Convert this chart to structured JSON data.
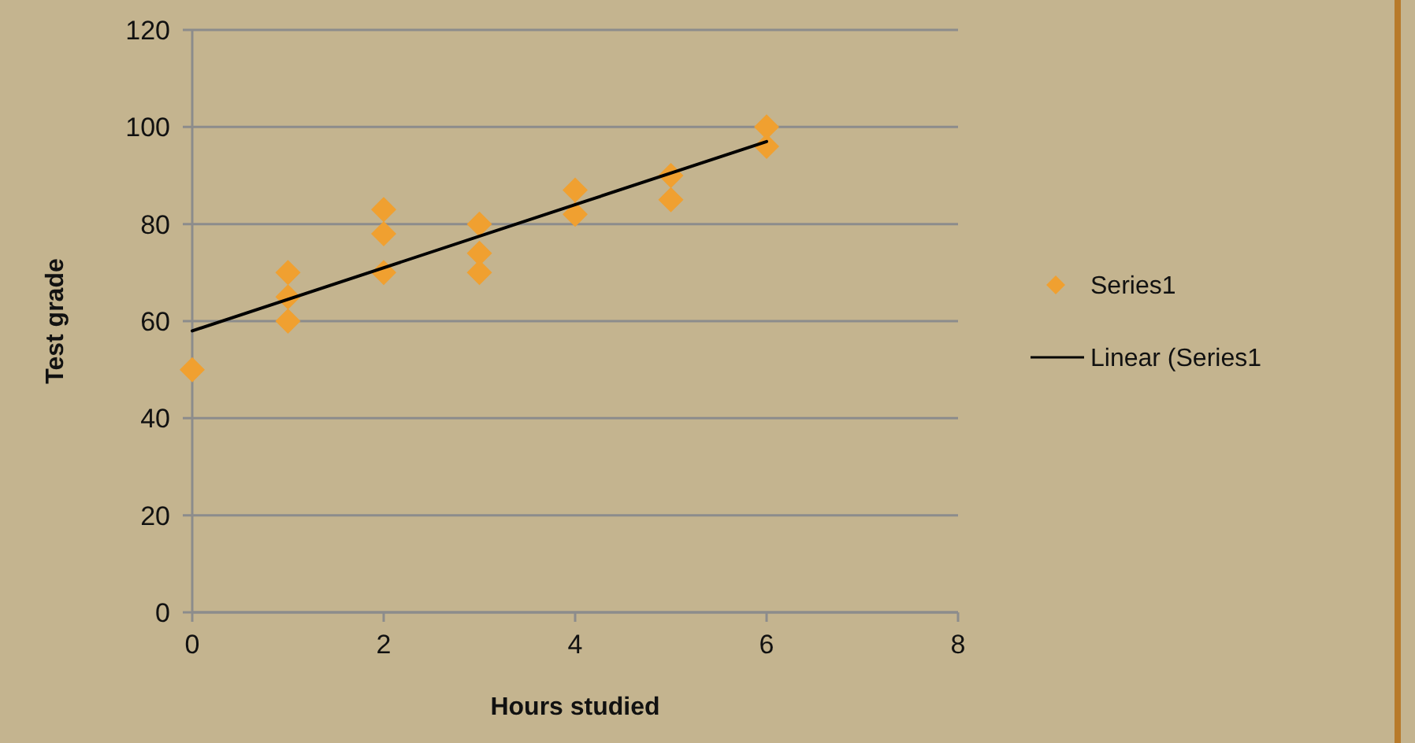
{
  "chart_data": {
    "type": "scatter",
    "xlabel": "Hours studied",
    "ylabel": "Test grade",
    "xlim": [
      0,
      8
    ],
    "ylim": [
      0,
      120
    ],
    "xticks": [
      0,
      2,
      4,
      6,
      8
    ],
    "yticks": [
      0,
      20,
      40,
      60,
      80,
      100,
      120
    ],
    "grid": "y",
    "legend": "right",
    "marker": "diamond",
    "series": [
      {
        "name": "Series1",
        "color": "#f0a030",
        "x": [
          0,
          1,
          1,
          1,
          2,
          2,
          2,
          3,
          3,
          3,
          4,
          4,
          5,
          5,
          6,
          6
        ],
        "values": [
          50,
          70,
          65,
          60,
          83,
          78,
          70,
          80,
          74,
          70,
          87,
          82,
          90,
          85,
          100,
          96
        ]
      },
      {
        "name": "Linear (Series1",
        "type": "line",
        "color": "#000000",
        "marker": "none",
        "line_style": "solid",
        "x": [
          0,
          6
        ],
        "values": [
          58,
          97
        ]
      }
    ]
  }
}
